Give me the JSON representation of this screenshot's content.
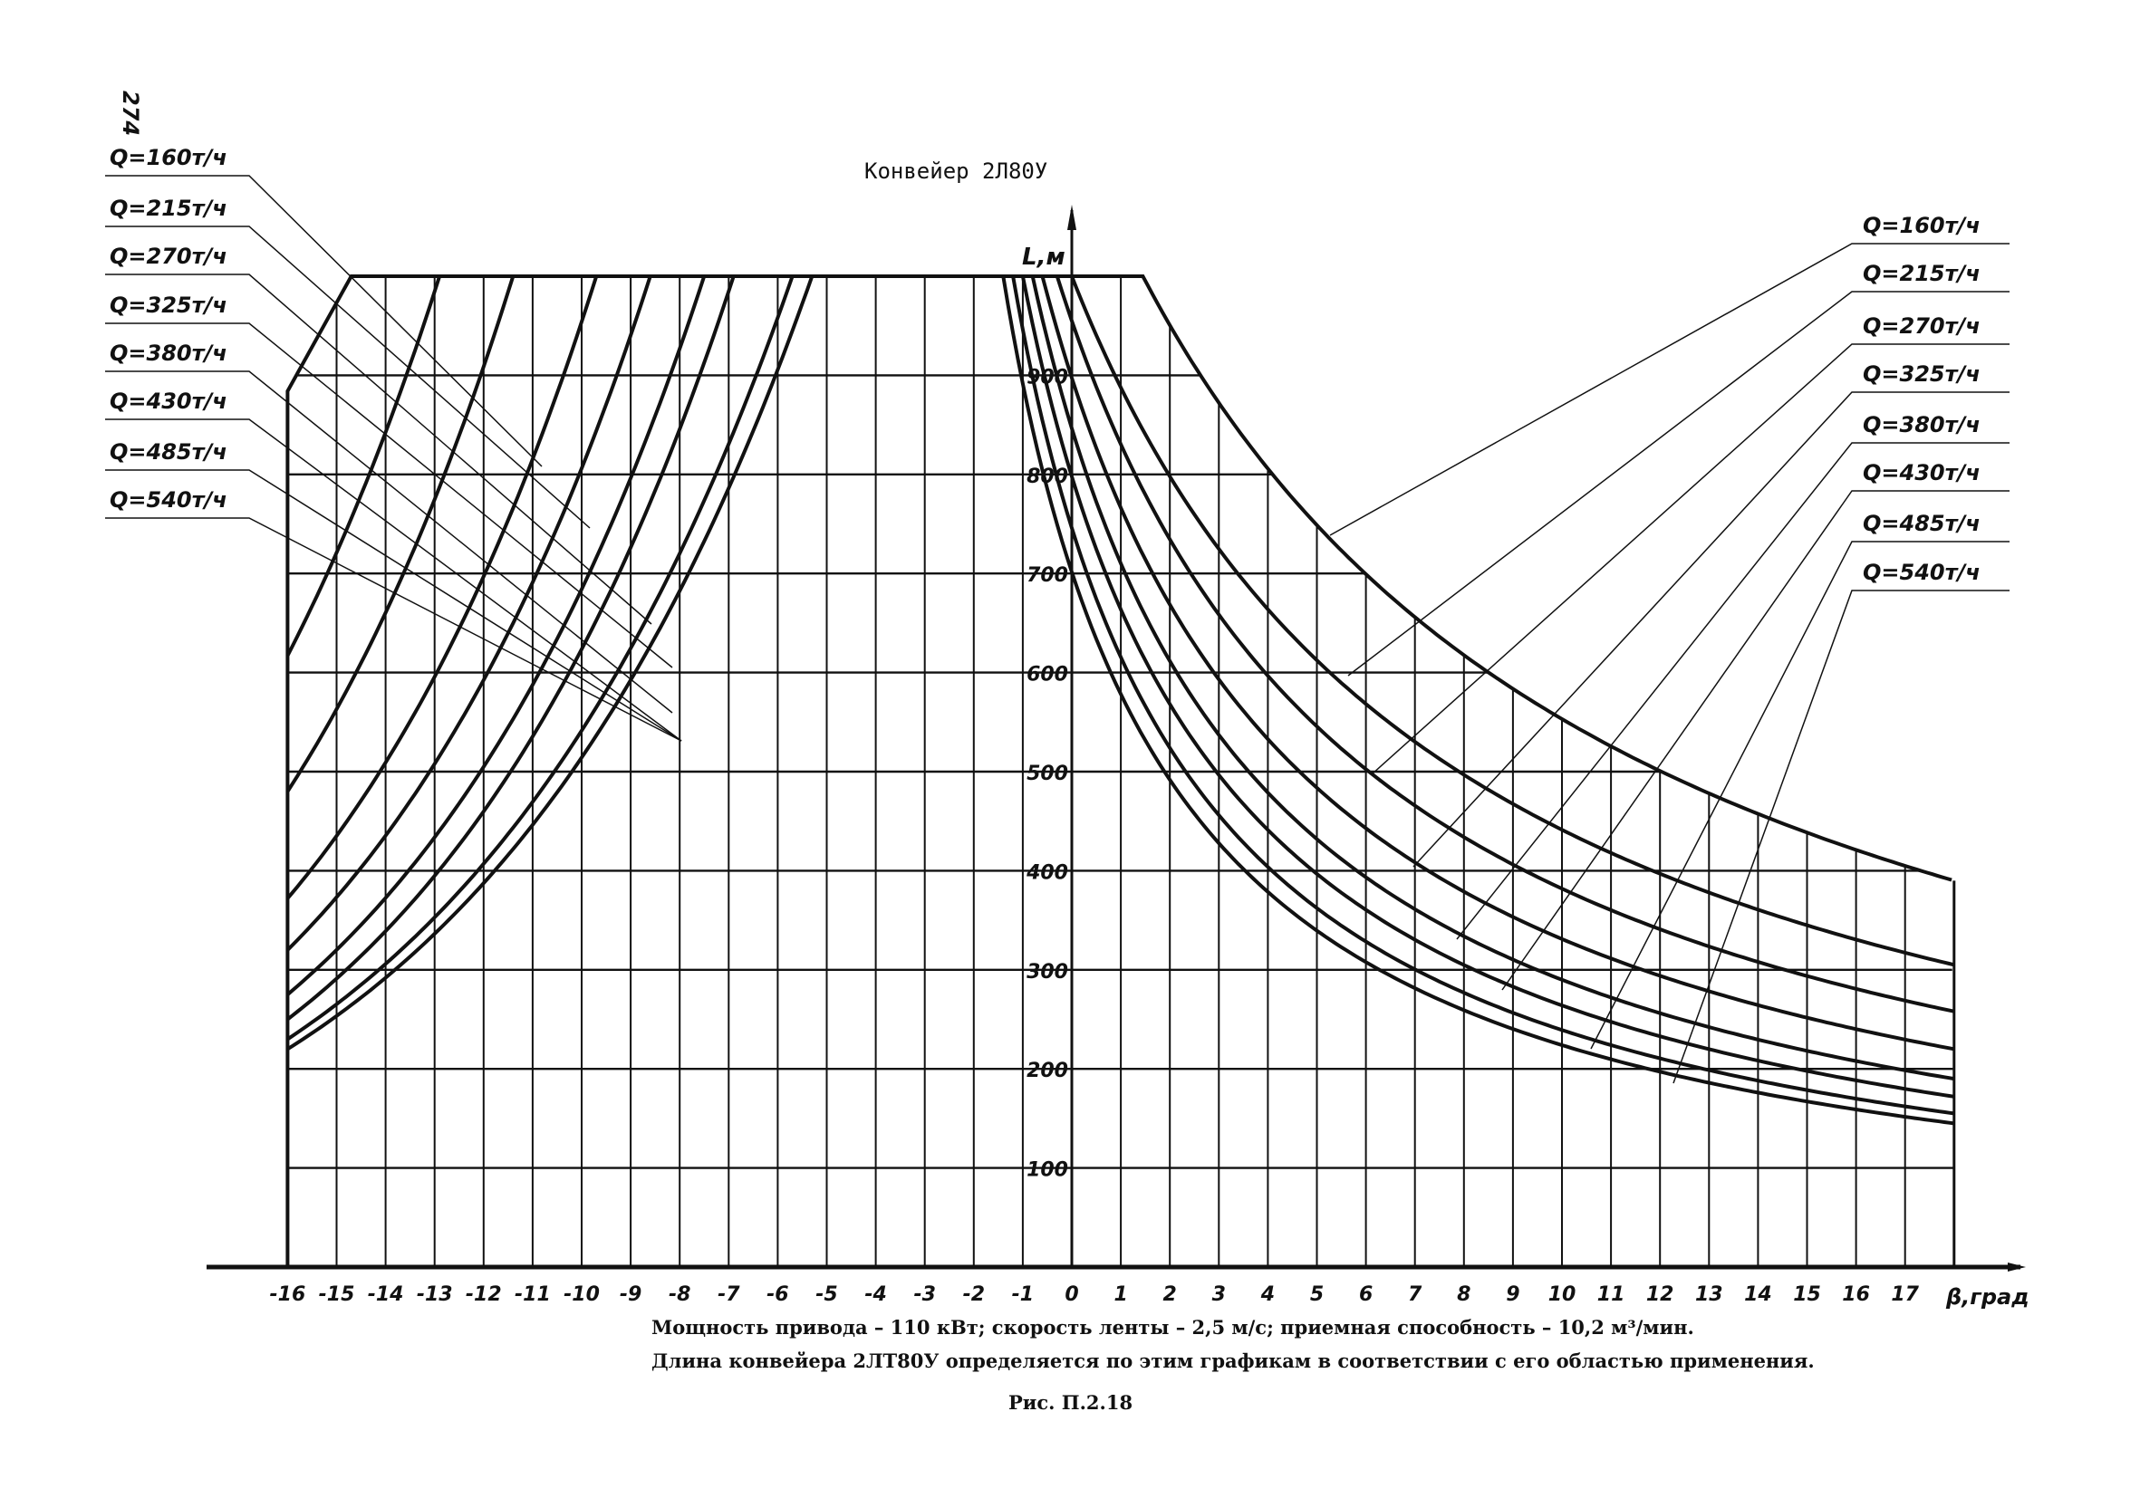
{
  "page_number": "274",
  "caption": {
    "line1": "Мощность привода – 110 кВт; скорость ленты – 2,5 м/с; приемная способность – 10,2 м³/мин.",
    "line2": "Длина конвейера 2ЛТ80У определяется по этим графикам  в соответствии с его областью применения.",
    "figure": "Рис. П.2.18"
  },
  "chart_data": {
    "type": "line",
    "title": "Конвейер 2Л80У",
    "xlabel": "β,град",
    "ylabel": "L,м",
    "xlim": [
      -16,
      18
    ],
    "ylim": [
      0,
      1000
    ],
    "grid": true,
    "x_ticks": [
      "-16",
      "-15",
      "-14",
      "-13",
      "-12",
      "-11",
      "-10",
      "-9",
      "-8",
      "-7",
      "-6",
      "-5",
      "-4",
      "-3",
      "-2",
      "-1",
      "0",
      "1",
      "2",
      "3",
      "4",
      "5",
      "6",
      "7",
      "8",
      "9",
      "10",
      "11",
      "12",
      "13",
      "14",
      "15",
      "16",
      "17"
    ],
    "y_ticks": [
      "100",
      "200",
      "300",
      "400",
      "500",
      "600",
      "700",
      "800",
      "900"
    ],
    "legend_labels": [
      "Q=160т/ч",
      "Q=215т/ч",
      "Q=270т/ч",
      "Q=325т/ч",
      "Q=380т/ч",
      "Q=430т/ч",
      "Q=485т/ч",
      "Q=540т/ч"
    ],
    "envelope_left": [
      [
        -16,
        884
      ],
      [
        -14.7,
        1000
      ]
    ],
    "max_length": 1000,
    "descent_series": [
      {
        "name": "Q=160т/ч",
        "L_at_minus16": 617,
        "beta_at_1000": -12.9
      },
      {
        "name": "Q=215т/ч",
        "L_at_minus16": 480,
        "beta_at_1000": -11.4
      },
      {
        "name": "Q=270т/ч",
        "L_at_minus16": 372,
        "beta_at_1000": -9.7
      },
      {
        "name": "Q=325т/ч",
        "L_at_minus16": 320,
        "beta_at_1000": -8.6
      },
      {
        "name": "Q=380т/ч",
        "L_at_minus16": 275,
        "beta_at_1000": -7.5
      },
      {
        "name": "Q=430т/ч",
        "L_at_minus16": 250,
        "beta_at_1000": -6.9
      },
      {
        "name": "Q=485т/ч",
        "L_at_minus16": 230,
        "beta_at_1000": -5.7
      },
      {
        "name": "Q=540т/ч",
        "L_at_minus16": 220,
        "beta_at_1000": -5.3
      }
    ],
    "ascent_series": [
      {
        "name": "Q=160т/ч",
        "beta_at_1000": 1.45,
        "L_at_18": 390
      },
      {
        "name": "Q=215т/ч",
        "beta_at_1000": 0.0,
        "L_at_18": 305
      },
      {
        "name": "Q=270т/ч",
        "beta_at_1000": -0.3,
        "L_at_18": 258
      },
      {
        "name": "Q=325т/ч",
        "beta_at_1000": -0.6,
        "L_at_18": 220
      },
      {
        "name": "Q=380т/ч",
        "beta_at_1000": -0.8,
        "L_at_18": 190
      },
      {
        "name": "Q=430т/ч",
        "beta_at_1000": -1.0,
        "L_at_18": 172
      },
      {
        "name": "Q=485т/ч",
        "beta_at_1000": -1.2,
        "L_at_18": 155
      },
      {
        "name": "Q=540т/ч",
        "beta_at_1000": -1.4,
        "L_at_18": 145
      }
    ]
  }
}
